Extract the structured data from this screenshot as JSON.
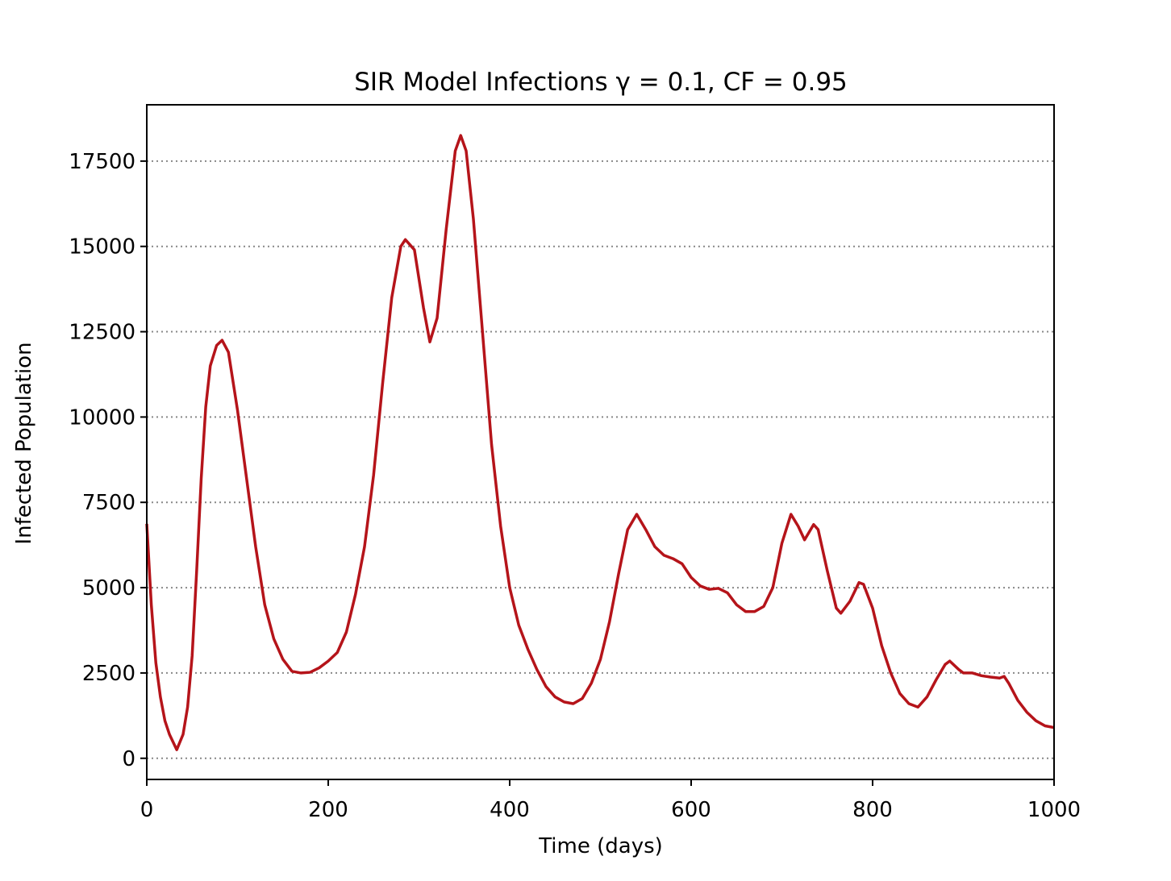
{
  "chart_data": {
    "type": "line",
    "title": "SIR Model Infections γ = 0.1, CF = 0.95",
    "x_label": "Time (days)",
    "y_label": "Infected Population",
    "x": [
      0,
      5,
      10,
      15,
      20,
      25,
      33,
      40,
      45,
      50,
      55,
      60,
      65,
      70,
      77,
      83,
      90,
      100,
      110,
      120,
      130,
      140,
      150,
      160,
      170,
      180,
      190,
      200,
      210,
      220,
      230,
      240,
      250,
      260,
      270,
      280,
      285,
      295,
      305,
      312,
      320,
      330,
      340,
      346,
      352,
      360,
      370,
      380,
      390,
      400,
      410,
      420,
      430,
      440,
      450,
      460,
      470,
      480,
      490,
      500,
      510,
      520,
      530,
      540,
      550,
      560,
      570,
      580,
      590,
      600,
      610,
      620,
      630,
      640,
      650,
      660,
      670,
      680,
      690,
      700,
      710,
      718,
      725,
      735,
      740,
      750,
      760,
      765,
      775,
      785,
      790,
      800,
      810,
      820,
      830,
      840,
      850,
      860,
      870,
      880,
      885,
      895,
      900,
      910,
      920,
      930,
      940,
      945,
      950,
      960,
      970,
      980,
      990,
      1000
    ],
    "series": [
      {
        "name": "Infected",
        "color": "#b5141a",
        "values": [
          6870,
          4500,
          2800,
          1800,
          1100,
          700,
          250,
          700,
          1500,
          3000,
          5500,
          8200,
          10300,
          11500,
          12100,
          12250,
          11900,
          10200,
          8200,
          6200,
          4500,
          3500,
          2900,
          2550,
          2500,
          2520,
          2650,
          2850,
          3100,
          3700,
          4800,
          6200,
          8300,
          11000,
          13500,
          15000,
          15200,
          14900,
          13200,
          12200,
          12900,
          15500,
          17800,
          18250,
          17800,
          15800,
          12500,
          9200,
          6800,
          5000,
          3900,
          3200,
          2600,
          2100,
          1800,
          1650,
          1600,
          1750,
          2200,
          2900,
          4000,
          5400,
          6700,
          7150,
          6700,
          6200,
          5950,
          5850,
          5700,
          5300,
          5050,
          4950,
          4980,
          4850,
          4500,
          4300,
          4300,
          4450,
          5000,
          6300,
          7150,
          6800,
          6400,
          6850,
          6700,
          5500,
          4400,
          4250,
          4600,
          5150,
          5100,
          4400,
          3300,
          2500,
          1900,
          1600,
          1500,
          1800,
          2300,
          2750,
          2850,
          2600,
          2500,
          2500,
          2420,
          2380,
          2350,
          2400,
          2200,
          1700,
          1350,
          1100,
          950,
          900
        ]
      }
    ],
    "xlim": [
      0,
      1000
    ],
    "xticks": [
      0,
      200,
      400,
      600,
      800,
      1000
    ],
    "ylim": [
      -620,
      19150
    ],
    "yticks": [
      0,
      2500,
      5000,
      7500,
      10000,
      12500,
      15000,
      17500
    ],
    "grid": "y"
  }
}
